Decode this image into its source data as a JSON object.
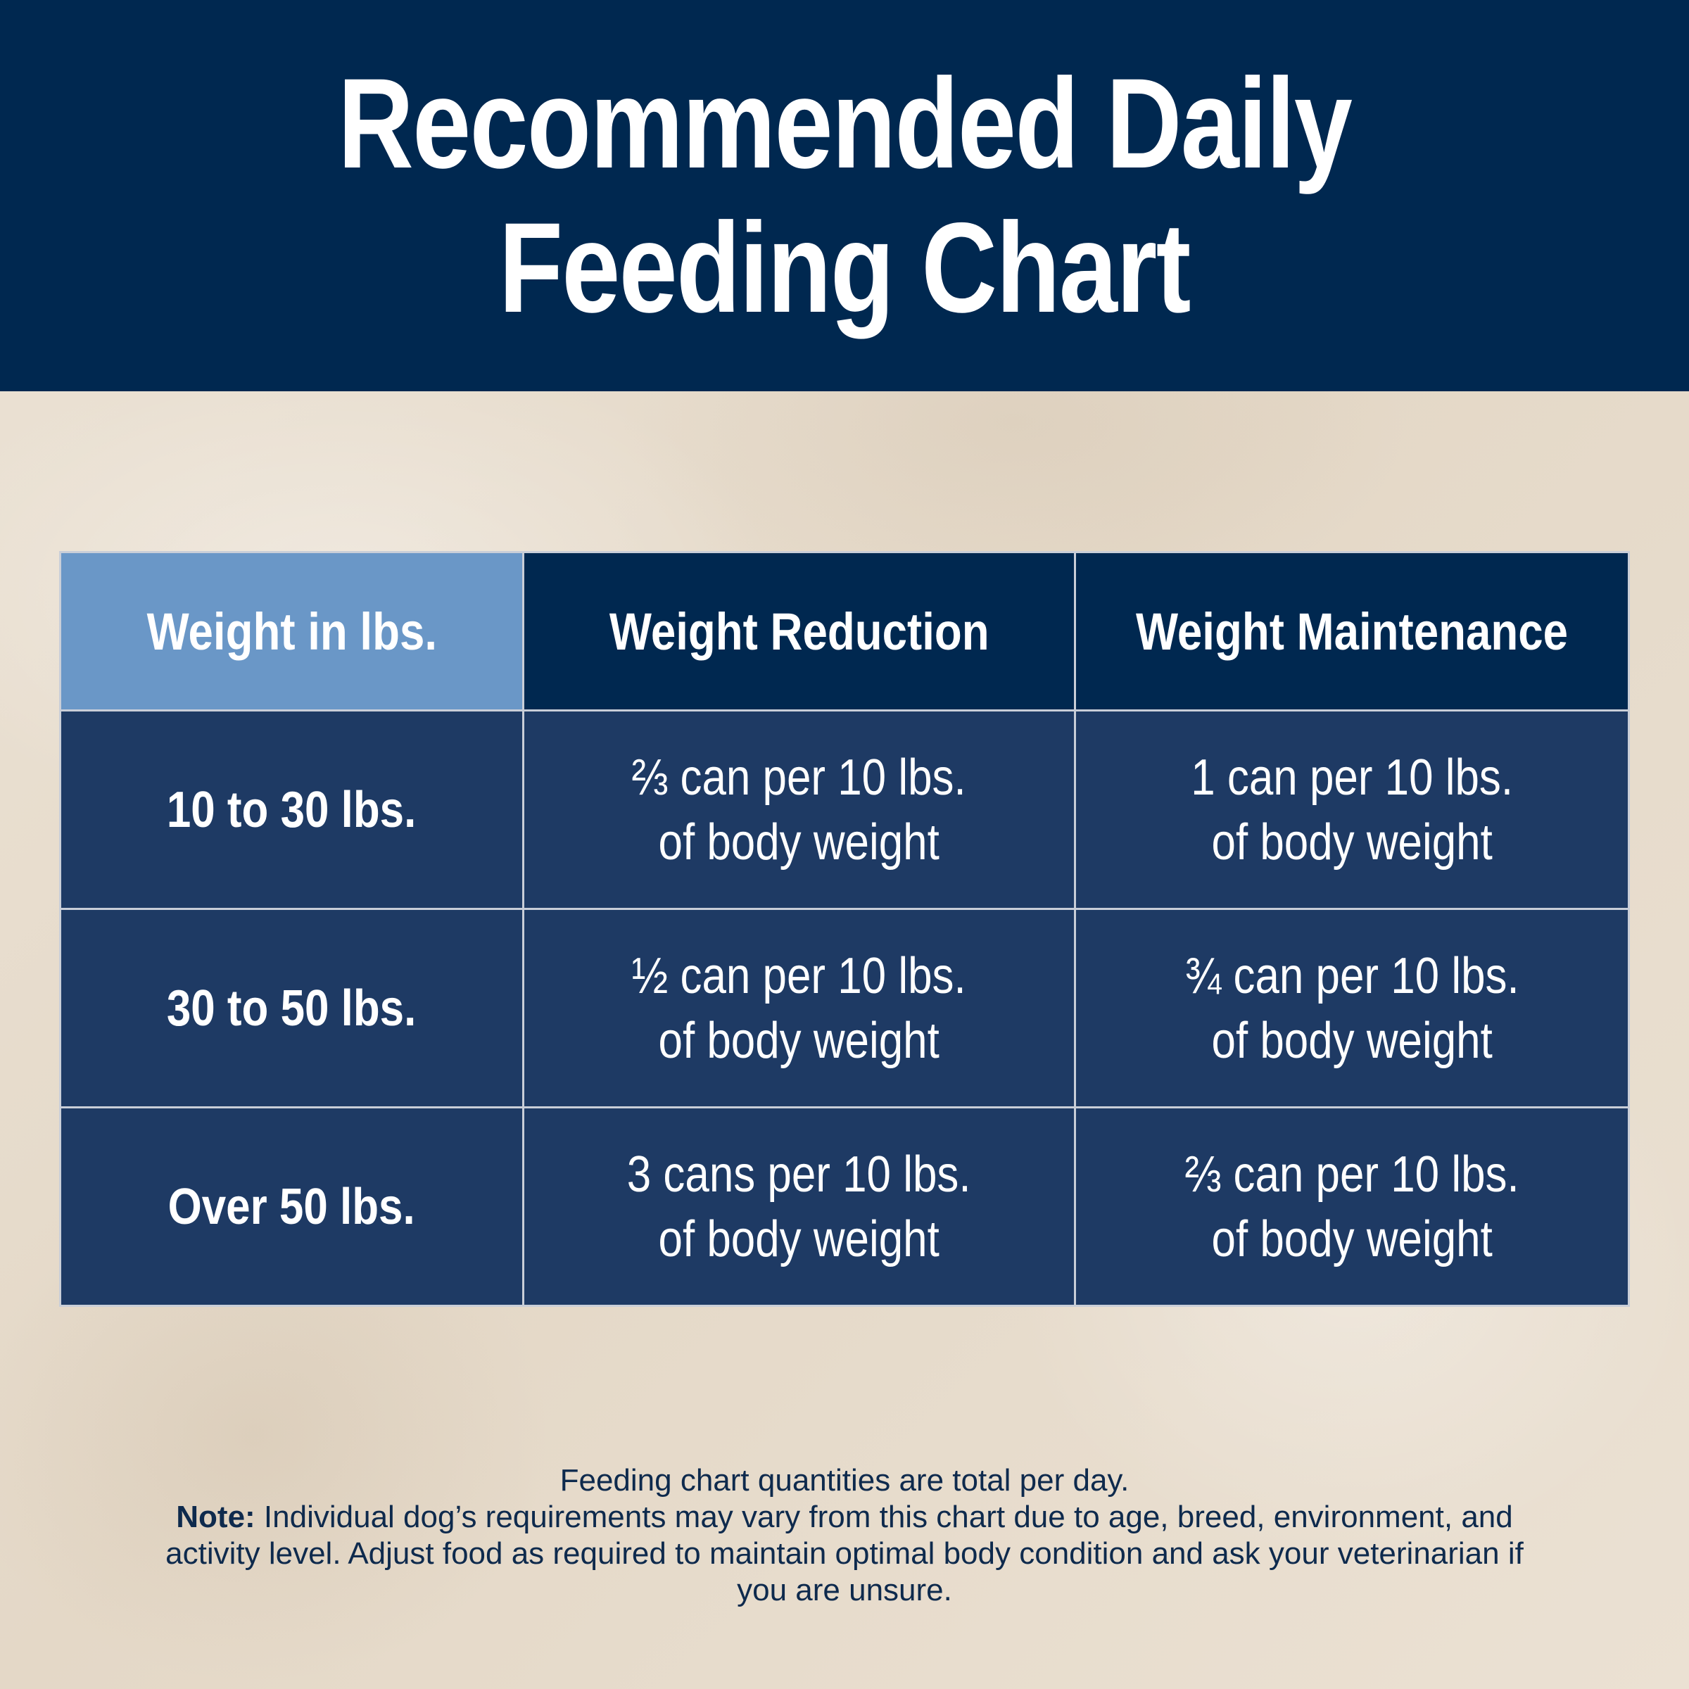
{
  "header": {
    "title_line1": "Recommended Daily",
    "title_line2": "Feeding Chart"
  },
  "table": {
    "headers": [
      "Weight in lbs.",
      "Weight Reduction",
      "Weight Maintenance"
    ],
    "rows": [
      {
        "weight": "10 to 30 lbs.",
        "reduction": [
          "⅔ can per 10 lbs.",
          "of body weight"
        ],
        "maintenance": [
          "1 can per 10 lbs.",
          "of body weight"
        ]
      },
      {
        "weight": "30 to 50 lbs.",
        "reduction": [
          "½ can per 10 lbs.",
          "of body weight"
        ],
        "maintenance": [
          "¾ can per 10 lbs.",
          "of body weight"
        ]
      },
      {
        "weight": "Over 50 lbs.",
        "reduction": [
          "3 cans per 10 lbs.",
          "of body weight"
        ],
        "maintenance": [
          "⅔ can per 10 lbs.",
          "of body weight"
        ]
      }
    ]
  },
  "footer": {
    "line1": "Feeding chart quantities are total per day.",
    "note_label": "Note:",
    "note_text": " Individual dog’s requirements may vary from this chart due to age, breed, environment, and activity level. Adjust food as required to maintain optimal body condition and ask your veterinarian if you are unsure."
  },
  "colors": {
    "navy": "#002850",
    "cell_blue": "#1e3a64",
    "header_light_blue": "#6a97c7",
    "background_beige": "#e7dccc"
  }
}
